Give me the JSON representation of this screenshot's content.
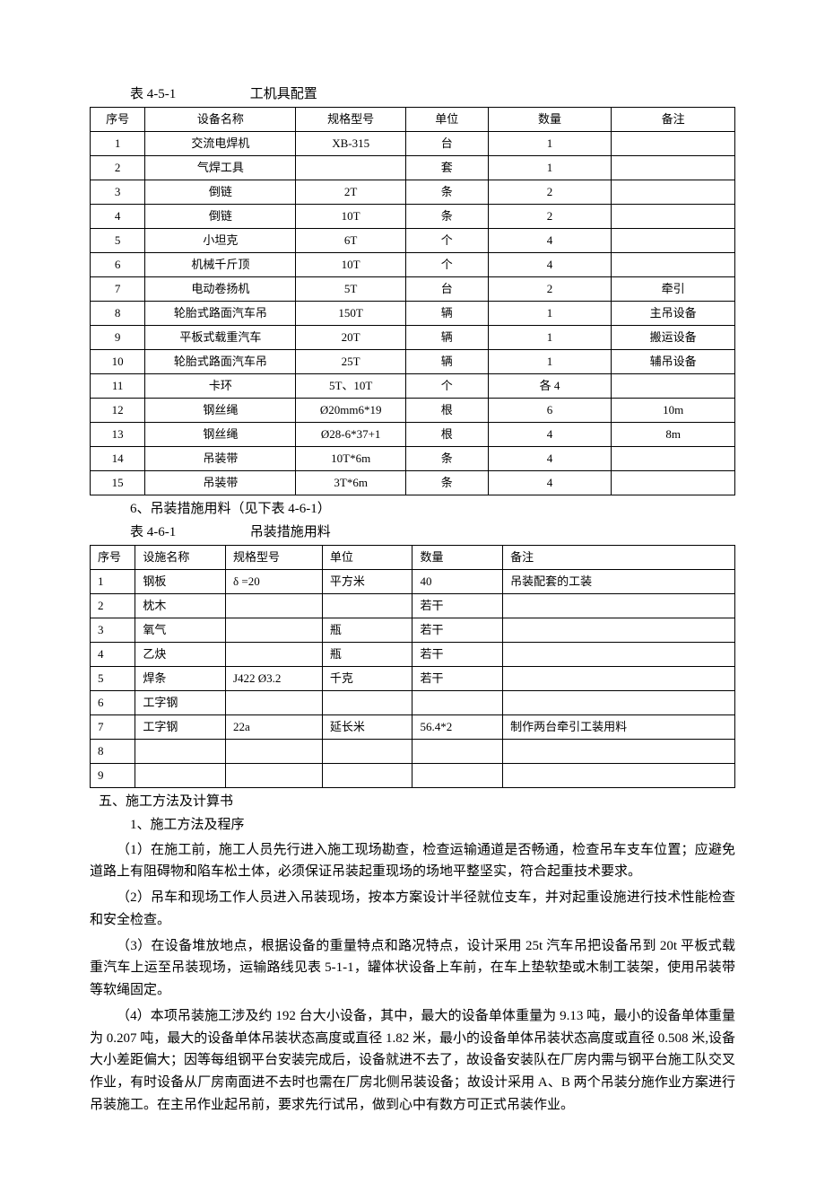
{
  "table1": {
    "title_label": "表 4-5-1",
    "title_name": "工机具配置",
    "headers": [
      "序号",
      "设备名称",
      "规格型号",
      "单位",
      "数量",
      "备注"
    ],
    "rows": [
      [
        "1",
        "交流电焊机",
        "XB-315",
        "台",
        "1",
        ""
      ],
      [
        "2",
        "气焊工具",
        "",
        "套",
        "1",
        ""
      ],
      [
        "3",
        "倒链",
        "2T",
        "条",
        "2",
        ""
      ],
      [
        "4",
        "倒链",
        "10T",
        "条",
        "2",
        ""
      ],
      [
        "5",
        "小坦克",
        "6T",
        "个",
        "4",
        ""
      ],
      [
        "6",
        "机械千斤顶",
        "10T",
        "个",
        "4",
        ""
      ],
      [
        "7",
        "电动卷扬机",
        "5T",
        "台",
        "2",
        "牵引"
      ],
      [
        "8",
        "轮胎式路面汽车吊",
        "150T",
        "辆",
        "1",
        "主吊设备"
      ],
      [
        "9",
        "平板式载重汽车",
        "20T",
        "辆",
        "1",
        "搬运设备"
      ],
      [
        "10",
        "轮胎式路面汽车吊",
        "25T",
        "辆",
        "1",
        "辅吊设备"
      ],
      [
        "11",
        "卡环",
        "5T、10T",
        "个",
        "各 4",
        ""
      ],
      [
        "12",
        "钢丝绳",
        "Ø20mm6*19",
        "根",
        "6",
        "10m"
      ],
      [
        "13",
        "钢丝绳",
        "Ø28-6*37+1",
        "根",
        "4",
        "8m"
      ],
      [
        "14",
        "吊装带",
        "10T*6m",
        "条",
        "4",
        ""
      ],
      [
        "15",
        "吊装带",
        "3T*6m",
        "条",
        "4",
        ""
      ]
    ]
  },
  "subtitle6": "6、吊装措施用料（见下表 4-6-1）",
  "table2": {
    "title_label": "表 4-6-1",
    "title_name": "吊装措施用料",
    "headers": [
      "序号",
      "设施名称",
      "规格型号",
      "单位",
      "数量",
      "备注"
    ],
    "rows": [
      [
        "1",
        "钢板",
        "δ =20",
        "平方米",
        "40",
        "吊装配套的工装"
      ],
      [
        "2",
        "枕木",
        "",
        "",
        "若干",
        ""
      ],
      [
        "3",
        "氧气",
        "",
        "瓶",
        "若干",
        ""
      ],
      [
        "4",
        "乙炔",
        "",
        "瓶",
        "若干",
        ""
      ],
      [
        "5",
        "焊条",
        "J422   Ø3.2",
        "千克",
        "若干",
        ""
      ],
      [
        "6",
        "工字钢",
        "",
        "",
        "",
        ""
      ],
      [
        "7",
        "工字钢",
        "22a",
        "延长米",
        "56.4*2",
        "制作两台牵引工装用料"
      ],
      [
        "8",
        "",
        "",
        "",
        "",
        ""
      ],
      [
        "9",
        "",
        "",
        "",
        "",
        ""
      ]
    ]
  },
  "section5": "五、施工方法及计算书",
  "sub1": "1、施工方法及程序",
  "p1": "（1）在施工前，施工人员先行进入施工现场勘查，检查运输通道是否畅通，检查吊车支车位置；应避免道路上有阻碍物和陷车松土体，必须保证吊装起重现场的场地平整坚实，符合起重技术要求。",
  "p2": "（2）吊车和现场工作人员进入吊装现场，按本方案设计半径就位支车，并对起重设施进行技术性能检查和安全检查。",
  "p3": "（3）在设备堆放地点，根据设备的重量特点和路况特点，设计采用 25t 汽车吊把设备吊到 20t 平板式载重汽车上运至吊装现场，运输路线见表 5-1-1，罐体状设备上车前，在车上垫软垫或木制工装架，使用吊装带等软绳固定。",
  "p4": "（4）本项吊装施工涉及约 192 台大小设备，其中，最大的设备单体重量为 9.13 吨，最小的设备单体重量为 0.207 吨，最大的设备单体吊装状态高度或直径 1.82 米，最小的设备单体吊装状态高度或直径 0.508 米,设备大小差距偏大；因等每组钢平台安装完成后，设备就进不去了，故设备安装队在厂房内需与钢平台施工队交叉作业，有时设备从厂房南面进不去时也需在厂房北侧吊装设备；故设计采用 A、B 两个吊装分施作业方案进行吊装施工。在主吊作业起吊前，要求先行试吊，做到心中有数方可正式吊装作业。"
}
